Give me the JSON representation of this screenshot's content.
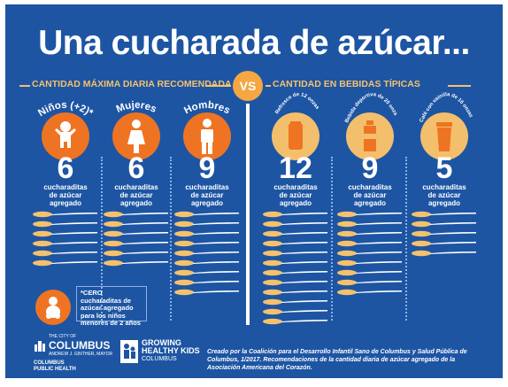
{
  "title": "Una cucharada de azúcar...",
  "section_left": "CANTIDAD MÁXIMA DIARIA RECOMENDADA",
  "section_right": "CANTIDAD EN BEBIDAS TÍPICAS",
  "vs_label": "VS",
  "columns": [
    {
      "label": "Niños (+2)*",
      "number": "6",
      "caption1": "cucharaditas",
      "caption2": "de azúcar",
      "caption3": "agregado",
      "spoons": 6,
      "circle_color": "#ee7423",
      "icon": "child-icon"
    },
    {
      "label": "Mujeres",
      "number": "6",
      "caption1": "cucharaditas",
      "caption2": "de azúcar",
      "caption3": "agregado",
      "spoons": 6,
      "circle_color": "#ee7423",
      "icon": "woman-icon"
    },
    {
      "label": "Hombres",
      "number": "9",
      "caption1": "cucharaditas",
      "caption2": "de azúcar",
      "caption3": "agregado",
      "spoons": 9,
      "circle_color": "#ee7423",
      "icon": "man-icon"
    },
    {
      "label": "Refresco de 12 onzas",
      "number": "12",
      "caption1": "cucharaditas",
      "caption2": "de azúcar",
      "caption3": "agregado",
      "spoons": 12,
      "circle_color": "#f3bf6c",
      "icon": "soda-can-icon"
    },
    {
      "label": "Bebida deportiva de 20 onzas",
      "number": "9",
      "caption1": "cucharaditas",
      "caption2": "de azúcar",
      "caption3": "agregado",
      "spoons": 9,
      "circle_color": "#f3bf6c",
      "icon": "sports-bottle-icon"
    },
    {
      "label": "Café con vainilla de 16 onzas",
      "number": "5",
      "caption1": "cucharaditas",
      "caption2": "de azúcar",
      "caption3": "agregado",
      "spoons": 5,
      "circle_color": "#f3bf6c",
      "icon": "coffee-cup-icon"
    }
  ],
  "note": "*CERO cucharaditas de azúcar agregado para los niños menores de 2 años",
  "footer": {
    "logo1_small": "THE CITY OF",
    "logo1_big": "COLUMBUS",
    "logo1_tag": "ANDREW J. GINTHER, MAYOR",
    "logo1_sub1": "COLUMBUS",
    "logo1_sub2": "PUBLIC HEALTH",
    "logo2_line1": "GROWING",
    "logo2_line2": "HEALTHY KIDS",
    "logo2_line3": "COLUMBUS",
    "credit": "Creado por la Coalición para el Desarrollo Infantil Sano  de Columbus y Salud Pública de Columbus, 1/2017. Recomendaciones de la cantidad diaria de azúcar agregado de la Asociación Americana del Corazón."
  },
  "colors": {
    "background": "#1d55a3",
    "orange": "#ee7423",
    "tan": "#f3bf6c",
    "gold": "#f5c16c"
  }
}
